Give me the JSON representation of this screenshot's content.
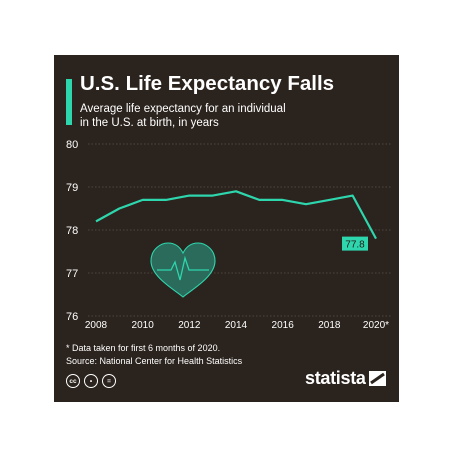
{
  "title": "U.S. Life Expectancy Falls",
  "subtitle_lines": [
    "Average life expectancy for an individual",
    "in the U.S. at birth, in years"
  ],
  "footnote": "* Data taken for first 6 months of 2020.",
  "source": "Source: National Center for Health Statistics",
  "brand": "statista",
  "license_icons": [
    "cc",
    "by",
    "nd"
  ],
  "license_icon_symbols": [
    "cc",
    "•",
    "="
  ],
  "colors": {
    "background": "#2b231d",
    "accent": "#2ed6ad",
    "text": "#ffffff",
    "grid": "#5a514a",
    "heart": "#2a6b5c"
  },
  "chart_data": {
    "type": "line",
    "title": "U.S. Life Expectancy Falls",
    "ylabel": "",
    "xlabel": "",
    "x": [
      2008,
      2009,
      2010,
      2011,
      2012,
      2013,
      2014,
      2015,
      2016,
      2017,
      2018,
      2019,
      2020
    ],
    "series": [
      {
        "values": [
          78.2,
          78.5,
          78.7,
          78.7,
          78.8,
          78.8,
          78.9,
          78.7,
          78.7,
          78.6,
          78.7,
          78.8,
          77.8
        ]
      }
    ],
    "x_tick_labels": [
      "2008",
      "2010",
      "2012",
      "2014",
      "2016",
      "2018",
      "2020*"
    ],
    "x_tick_values": [
      2008,
      2010,
      2012,
      2014,
      2016,
      2018,
      2020
    ],
    "y_ticks": [
      76,
      77,
      78,
      79,
      80
    ],
    "ylim": [
      76,
      80
    ],
    "xlim": [
      2008,
      2020
    ],
    "annotation": {
      "x": 2020,
      "y": 77.8,
      "label": "77.8"
    },
    "grid": true
  }
}
